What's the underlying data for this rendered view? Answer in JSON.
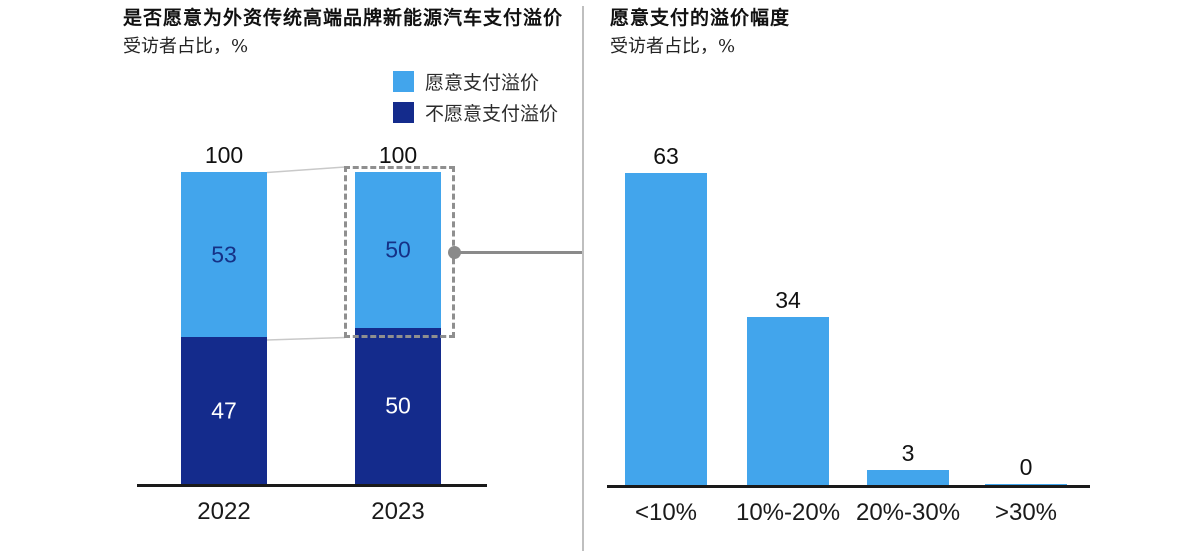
{
  "colors": {
    "light_blue": "#42A5EC",
    "dark_navy": "#142B8C",
    "axis": "#1A1A1A",
    "divider": "#BFBFBF",
    "annotation_gray": "#8A8A8A",
    "link_gray": "#C9C9C9"
  },
  "chart_data": [
    {
      "type": "bar",
      "stacked": true,
      "title": "是否愿意为外资传统高端品牌新能源汽车支付溢价",
      "subtitle": "受访者占比，%",
      "categories": [
        "2022",
        "2023"
      ],
      "series": [
        {
          "name": "愿意支付溢价",
          "color": "#42A5EC",
          "label_color": "#153186",
          "values": [
            53,
            50
          ]
        },
        {
          "name": "不愿意支付溢价",
          "color": "#142B8C",
          "label_color": "#FFFFFF",
          "values": [
            47,
            50
          ]
        }
      ],
      "totals": [
        100,
        100
      ],
      "ylim": [
        0,
        100
      ],
      "grid": false,
      "legend_position": "top-right",
      "highlight": {
        "category": "2023",
        "series": "愿意支付溢价",
        "style": "dashed-box-connected-to-right-chart"
      }
    },
    {
      "type": "bar",
      "title": "愿意支付的溢价幅度",
      "subtitle": "受访者占比，%",
      "categories": [
        "<10%",
        "10%-20%",
        "20%-30%",
        ">30%"
      ],
      "values": [
        63,
        34,
        3,
        0
      ],
      "color": "#42A5EC",
      "ylim": [
        0,
        100
      ],
      "grid": false
    }
  ]
}
